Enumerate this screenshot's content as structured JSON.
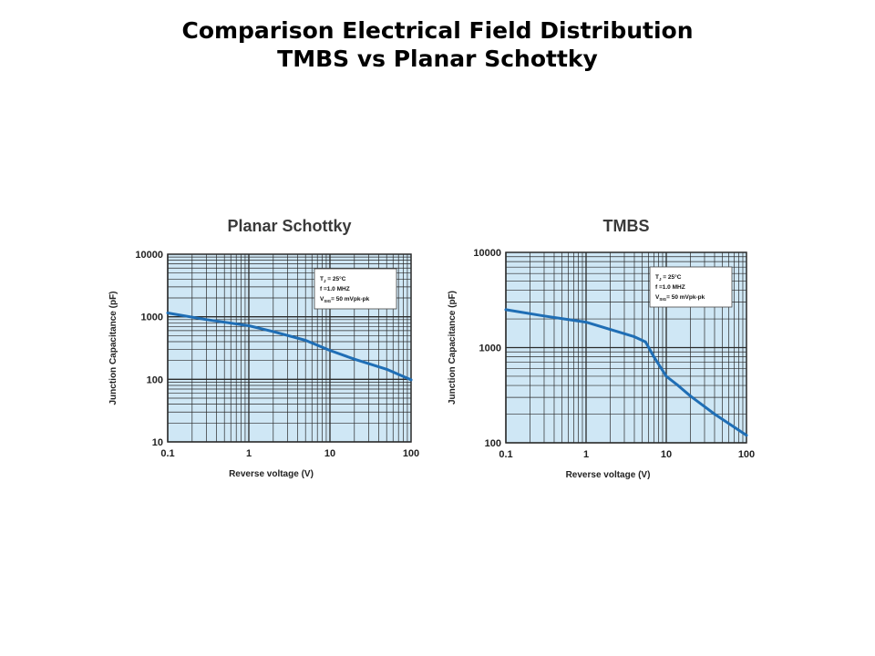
{
  "slide": {
    "title_line1": "Comparison Electrical Field Distribution",
    "title_line2": "TMBS vs Planar Schottky"
  },
  "colors": {
    "plot_bg": "#cfe7f5",
    "grid": "#2a2a2a",
    "curve": "#1f6eb5"
  },
  "chart_data": [
    {
      "type": "line",
      "title": "Planar Schottky",
      "xlabel": "Reverse voltage (V)",
      "ylabel": "Junction Capacitance (pF)",
      "xscale": "log",
      "yscale": "log",
      "xlim": [
        0.1,
        100
      ],
      "ylim": [
        10,
        10000
      ],
      "xticks": [
        "0.1",
        "1",
        "10",
        "100"
      ],
      "yticks": [
        "10",
        "100",
        "1000",
        "10000"
      ],
      "annotation": {
        "line1": "T",
        "line1_sub": "J",
        "line1_rest": " = 25°C",
        "line2": "f =1.0 MHZ",
        "line3": "V",
        "line3_sub": "SIG",
        "line3_rest": "= 50 mVpk-pk"
      },
      "series": [
        {
          "name": "Planar Schottky",
          "x": [
            0.1,
            0.3,
            1,
            2,
            5,
            10,
            20,
            50,
            100
          ],
          "y": [
            1150,
            900,
            720,
            580,
            420,
            290,
            210,
            145,
            98
          ]
        }
      ]
    },
    {
      "type": "line",
      "title": "TMBS",
      "xlabel": "Reverse voltage (V)",
      "ylabel": "Junction Capacitance (pF)",
      "xscale": "log",
      "yscale": "log",
      "xlim": [
        0.1,
        100
      ],
      "ylim": [
        100,
        10000
      ],
      "xticks": [
        "0.1",
        "1",
        "10",
        "100"
      ],
      "yticks": [
        "100",
        "1000",
        "10000"
      ],
      "annotation": {
        "line1": "T",
        "line1_sub": "J",
        "line1_rest": " = 25°C",
        "line2": "f =1.0 MHZ",
        "line3": "V",
        "line3_sub": "SIG",
        "line3_rest": "= 50 mVpk-pk"
      },
      "series": [
        {
          "name": "TMBS",
          "x": [
            0.1,
            0.3,
            1,
            2,
            4,
            5.5,
            7,
            10,
            14,
            20,
            40,
            100
          ],
          "y": [
            2500,
            2150,
            1850,
            1550,
            1300,
            1150,
            800,
            500,
            400,
            310,
            200,
            120
          ]
        }
      ]
    }
  ]
}
